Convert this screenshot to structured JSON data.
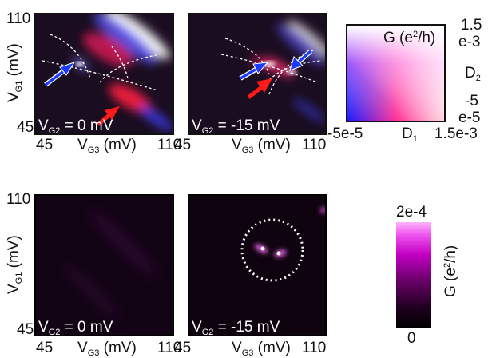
{
  "figure": {
    "top_left": {
      "y_axis": {
        "label": "V",
        "sub": "G1",
        "unit": " (mV)",
        "tick_top": "110",
        "tick_bottom": "45"
      },
      "x_axis": {
        "label": "V",
        "sub": "G3",
        "unit": " (mV)",
        "tick_left": "45",
        "tick_right": "110"
      },
      "inset": {
        "label": "V",
        "sub": "G2",
        "value": " = 0 mV"
      }
    },
    "top_middle": {
      "x_axis": {
        "label": "V",
        "sub": "G3",
        "unit": " (mV)",
        "tick_left": "45",
        "tick_right": "110"
      },
      "inset": {
        "label": "V",
        "sub": "G2",
        "value": " = -15 mV"
      }
    },
    "bottom_left": {
      "y_axis": {
        "label": "V",
        "sub": "G1",
        "unit": " (mV)",
        "tick_top": "110",
        "tick_bottom": "45"
      },
      "x_axis": {
        "label": "V",
        "sub": "G3",
        "unit": " (mV)",
        "tick_left": "45",
        "tick_right": "110"
      },
      "inset": {
        "label": "V",
        "sub": "G2",
        "value": " = 0 mV"
      }
    },
    "bottom_middle": {
      "x_axis": {
        "label": "V",
        "sub": "G3",
        "unit": " (mV)",
        "tick_left": "45",
        "tick_right": "110"
      },
      "inset": {
        "label": "V",
        "sub": "G2",
        "value": " = -15 mV"
      }
    },
    "colorbar_2d": {
      "title_pre": "G (e",
      "title_sup": "2",
      "title_post": "/h)",
      "right_top_1": "1.5",
      "right_top_2": "e-3",
      "right_axis": "D",
      "right_axis_sub": "2",
      "right_bottom_1": "-5",
      "right_bottom_2": "e-5",
      "bottom_left": "-5e-5",
      "bottom_axis": "D",
      "bottom_axis_sub": "1",
      "bottom_right": "1.5e-3",
      "colors": {
        "origin": "#1a1aff",
        "right": "#ff2a6a",
        "top_right": "#ffffff"
      }
    },
    "colorbar_1d": {
      "max": "2e-4",
      "min": "0",
      "label_pre": "G (e",
      "label_sup": "2",
      "label_post": "/h)",
      "colors": {
        "top": "#ffb3ff",
        "mid": "#c400c4",
        "bottom": "#000000"
      }
    },
    "colors": {
      "arrow_red": "#ff1a1a",
      "arrow_blue": "#1a3aff",
      "panel_bg": "#12081c"
    }
  }
}
